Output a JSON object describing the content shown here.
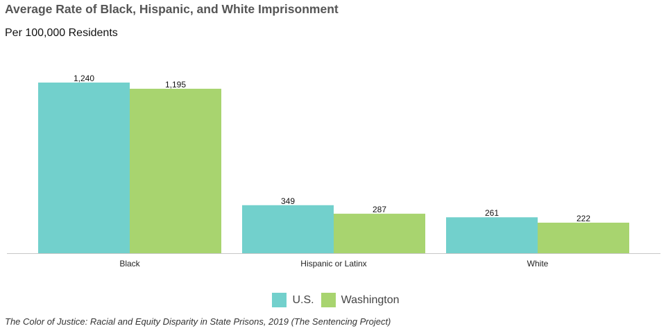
{
  "chart_data": {
    "type": "bar",
    "title": "Average Rate of Black, Hispanic, and White Imprisonment",
    "subtitle": "Per 100,000 Residents",
    "categories": [
      "Black",
      "Hispanic or Latinx",
      "White"
    ],
    "series": [
      {
        "name": "U.S.",
        "values": [
          1240,
          349,
          261
        ],
        "labels": [
          "1,240",
          "349",
          "261"
        ],
        "color": "#72d0cc"
      },
      {
        "name": "Washington",
        "values": [
          1195,
          287,
          222
        ],
        "labels": [
          "1,195",
          "287",
          "222"
        ],
        "color": "#a8d46f"
      }
    ],
    "ylim": [
      0,
      1240
    ],
    "grid": false,
    "legend_position": "bottom-center",
    "source": "The Color of Justice: Racial and Equity Disparity in State Prisons, 2019 (The Sentencing Project)"
  }
}
